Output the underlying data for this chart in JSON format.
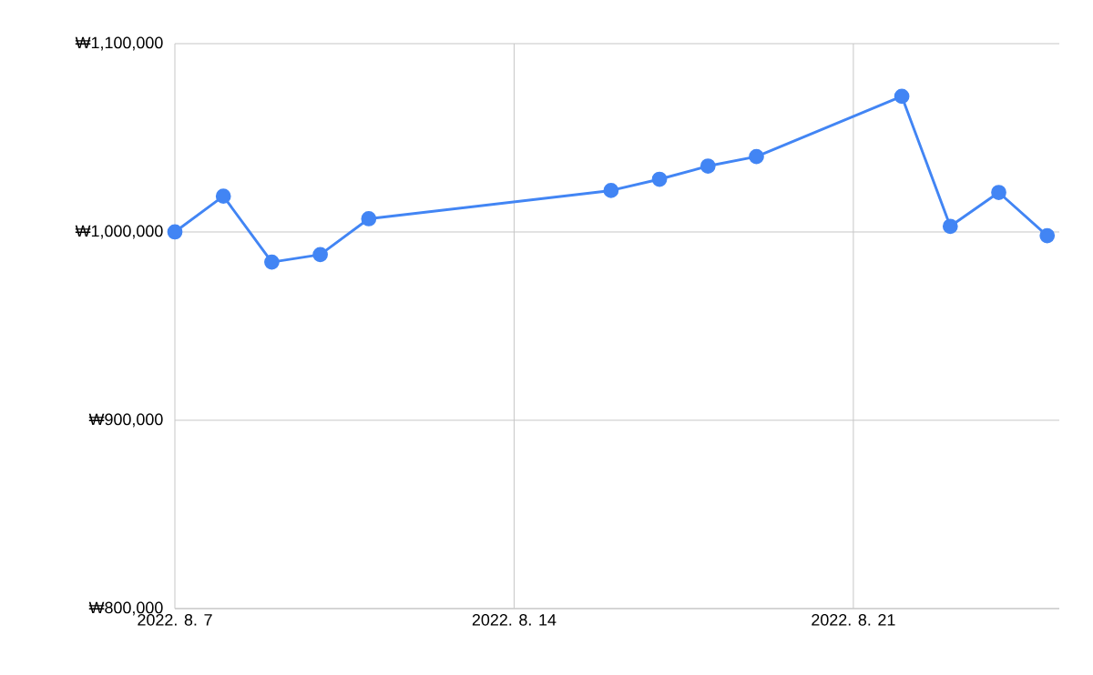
{
  "chart_data": {
    "type": "line",
    "x": [
      "2022-08-07",
      "2022-08-08",
      "2022-08-09",
      "2022-08-10",
      "2022-08-11",
      "2022-08-16",
      "2022-08-17",
      "2022-08-18",
      "2022-08-19",
      "2022-08-22",
      "2022-08-23",
      "2022-08-24",
      "2022-08-25"
    ],
    "series": [
      {
        "color": "#4285f4",
        "values": [
          1000000,
          1019000,
          984000,
          988000,
          1007000,
          1022000,
          1028000,
          1035000,
          1040000,
          1072000,
          1003000,
          1021000,
          998000
        ]
      }
    ],
    "xlim": [
      "2022-08-07",
      "2022-08-25T06:00"
    ],
    "xticks": [
      {
        "value": "2022-08-07",
        "label": "2022. 8. 7"
      },
      {
        "value": "2022-08-14",
        "label": "2022. 8. 14"
      },
      {
        "value": "2022-08-21",
        "label": "2022. 8. 21"
      }
    ],
    "ylim": [
      800000,
      1100000
    ],
    "yticks": [
      {
        "value": 800000,
        "label": "₩800,000"
      },
      {
        "value": 900000,
        "label": "₩900,000"
      },
      {
        "value": 1000000,
        "label": "₩1,000,000"
      },
      {
        "value": 1100000,
        "label": "₩1,100,000"
      }
    ],
    "grid": true,
    "marker": "circle",
    "line_style": "solid"
  }
}
